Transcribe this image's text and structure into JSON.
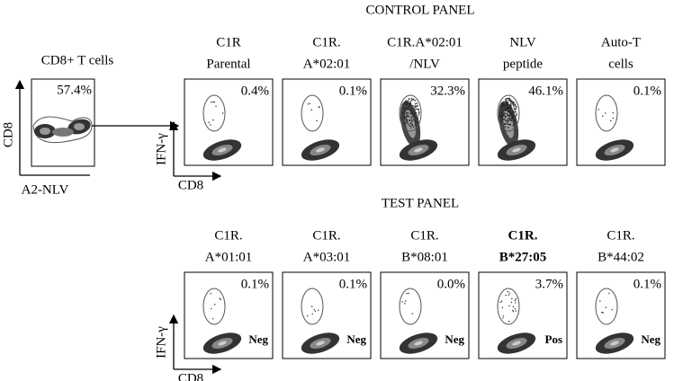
{
  "source": {
    "title": "CD8+ T cells",
    "percent": "57.4%",
    "x_axis": "A2-NLV",
    "y_axis": "CD8"
  },
  "control_panel": {
    "title": "CONTROL PANEL",
    "y_axis": "IFN-γ",
    "x_axis": "CD8",
    "samples": [
      {
        "label": [
          "C1R",
          "Parental"
        ],
        "percent": "0.4%"
      },
      {
        "label": [
          "C1R.",
          "A*02:01"
        ],
        "percent": "0.1%"
      },
      {
        "label": [
          "C1R.A*02:01",
          "/NLV"
        ],
        "percent": "32.3%"
      },
      {
        "label": [
          "NLV",
          "peptide"
        ],
        "percent": "46.1%"
      },
      {
        "label": [
          "Auto-T",
          "cells"
        ],
        "percent": "0.1%"
      }
    ]
  },
  "test_panel": {
    "title": "TEST PANEL",
    "y_axis": "IFN-γ",
    "x_axis": "CD8",
    "samples": [
      {
        "label": [
          "C1R.",
          "A*01:01"
        ],
        "percent": "0.1%",
        "result": "Neg",
        "bold": false
      },
      {
        "label": [
          "C1R.",
          "A*03:01"
        ],
        "percent": "0.1%",
        "result": "Neg",
        "bold": false
      },
      {
        "label": [
          "C1R.",
          "B*08:01"
        ],
        "percent": "0.0%",
        "result": "Neg",
        "bold": false
      },
      {
        "label": [
          "C1R.",
          "B*27:05"
        ],
        "percent": "3.7%",
        "result": "Pos",
        "bold": true
      },
      {
        "label": [
          "C1R.",
          "B*44:02"
        ],
        "percent": "0.1%",
        "result": "Neg",
        "bold": false
      }
    ]
  }
}
